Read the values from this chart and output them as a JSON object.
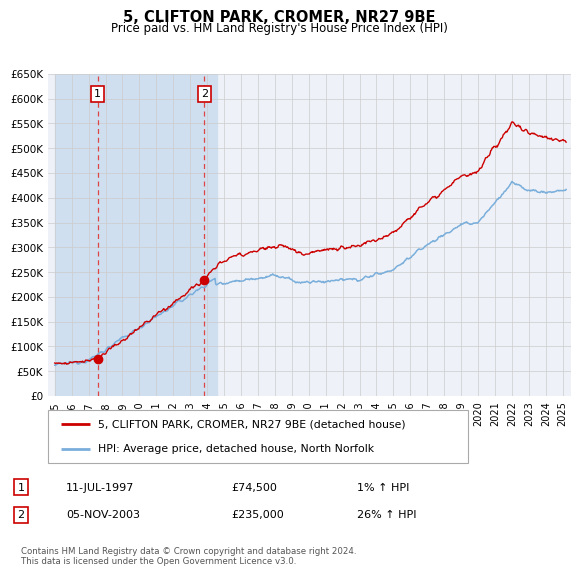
{
  "title": "5, CLIFTON PARK, CROMER, NR27 9BE",
  "subtitle": "Price paid vs. HM Land Registry's House Price Index (HPI)",
  "ylim": [
    0,
    650000
  ],
  "yticks": [
    0,
    50000,
    100000,
    150000,
    200000,
    250000,
    300000,
    350000,
    400000,
    450000,
    500000,
    550000,
    600000,
    650000
  ],
  "sale1_year": 1997.53,
  "sale1_price": 74500,
  "sale1_label": "1",
  "sale2_year": 2003.84,
  "sale2_price": 235000,
  "sale2_label": "2",
  "line_color_property": "#cc0000",
  "line_color_hpi": "#7aaedb",
  "legend_label_property": "5, CLIFTON PARK, CROMER, NR27 9BE (detached house)",
  "legend_label_hpi": "HPI: Average price, detached house, North Norfolk",
  "annotation1_date": "11-JUL-1997",
  "annotation1_price": "£74,500",
  "annotation1_hpi": "1% ↑ HPI",
  "annotation2_date": "05-NOV-2003",
  "annotation2_price": "£235,000",
  "annotation2_hpi": "26% ↑ HPI",
  "footer": "Contains HM Land Registry data © Crown copyright and database right 2024.\nThis data is licensed under the Open Government Licence v3.0.",
  "grid_color": "#cccccc",
  "plot_bg_color": "#eef2f8",
  "shade_color": "#d0dff0"
}
